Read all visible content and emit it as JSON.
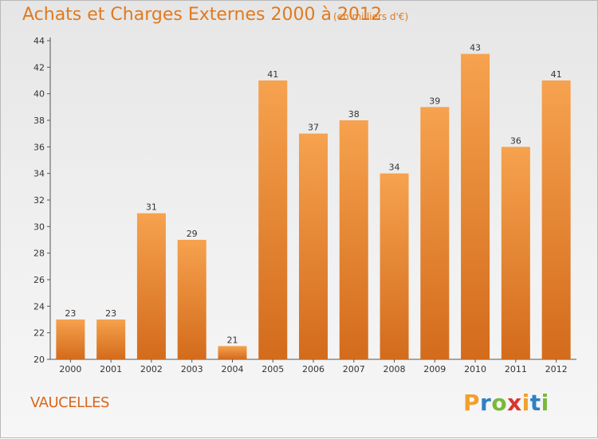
{
  "header": {
    "title": "Achats et Charges Externes 2000 à 2012",
    "subtitle": "(en milliers d'€)"
  },
  "footer": {
    "commune": "VAUCELLES",
    "logo_letters": [
      "P",
      "r",
      "o",
      "x",
      "i",
      "t",
      "i"
    ],
    "logo_colors": [
      "#f0a02c",
      "#2f7fc4",
      "#7ab83a",
      "#d8362d",
      "#f0a02c",
      "#2f7fc4",
      "#7ab83a"
    ]
  },
  "chart_data": {
    "type": "bar",
    "title": "Achats et Charges Externes 2000 à 2012",
    "categories": [
      "2000",
      "2001",
      "2002",
      "2003",
      "2004",
      "2005",
      "2006",
      "2007",
      "2008",
      "2009",
      "2010",
      "2011",
      "2012"
    ],
    "values": [
      23,
      23,
      31,
      29,
      21,
      41,
      37,
      38,
      34,
      39,
      43,
      36,
      41
    ],
    "ylim": [
      20,
      44
    ],
    "yticks": [
      20,
      22,
      24,
      26,
      28,
      30,
      32,
      34,
      36,
      38,
      40,
      42,
      44
    ],
    "grid": false,
    "bar_color_top": "#f6a24e",
    "bar_color_bottom": "#d36b1c"
  }
}
